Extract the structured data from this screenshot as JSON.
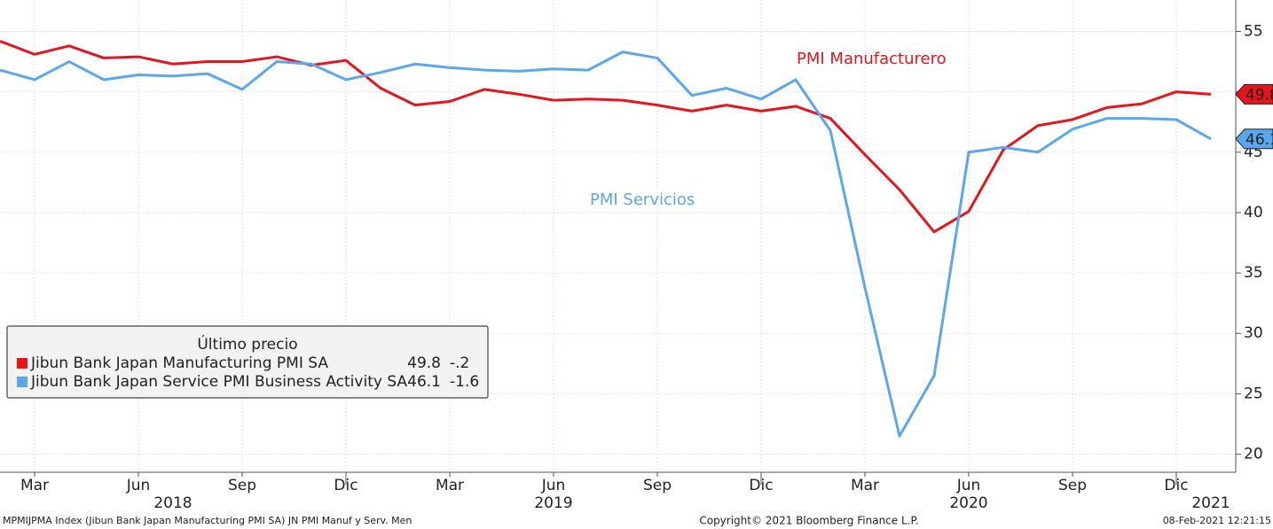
{
  "chart_data": {
    "type": "line",
    "categories": [
      null,
      "Mar",
      null,
      null,
      "Jun",
      null,
      null,
      "Sep",
      null,
      null,
      "Dic",
      null,
      null,
      "Mar",
      null,
      null,
      "Jun",
      null,
      null,
      "Sep",
      null,
      null,
      "Dic",
      null,
      null,
      "Mar",
      null,
      null,
      "Jun",
      null,
      null,
      "Sep",
      null,
      null,
      "Dic",
      null
    ],
    "category_years": [
      null,
      null,
      null,
      null,
      null,
      "2018",
      null,
      null,
      null,
      null,
      null,
      null,
      null,
      null,
      null,
      null,
      "2019",
      null,
      null,
      null,
      null,
      null,
      null,
      null,
      null,
      null,
      null,
      null,
      "2020",
      null,
      null,
      null,
      null,
      null,
      null,
      "2021"
    ],
    "series": [
      {
        "name": "Jibun Bank Japan Manufacturing PMI SA",
        "color": "#e8141b",
        "values": [
          54.2,
          53.1,
          53.8,
          52.8,
          52.9,
          52.3,
          52.5,
          52.5,
          52.9,
          52.2,
          52.6,
          50.3,
          48.9,
          49.2,
          50.2,
          49.8,
          49.3,
          49.4,
          49.3,
          48.9,
          48.4,
          48.9,
          48.4,
          48.8,
          47.8,
          44.8,
          41.9,
          38.4,
          40.1,
          45.2,
          47.2,
          47.7,
          48.7,
          49.0,
          50.0,
          49.8
        ],
        "change": {
          "value": -0.2,
          "label": "-.2"
        }
      },
      {
        "name": "Jibun Bank Japan Service PMI Business Activity SA",
        "color": "#5aa7ee",
        "values": [
          51.8,
          51.0,
          52.5,
          51.0,
          51.4,
          51.3,
          51.5,
          50.2,
          52.5,
          52.3,
          51.0,
          51.6,
          52.3,
          52.0,
          51.8,
          51.7,
          51.9,
          51.8,
          53.3,
          52.8,
          49.7,
          50.3,
          49.4,
          51.0,
          46.8,
          33.8,
          21.5,
          26.5,
          45.0,
          45.4,
          45.0,
          46.9,
          47.8,
          47.8,
          47.7,
          46.1
        ],
        "change": {
          "value": -1.6,
          "label": "-1.6"
        }
      }
    ],
    "annotations": [
      "PMI Manufacturero",
      "PMI Servicios"
    ],
    "legend_title": "Último precio",
    "ylim": [
      18.5,
      57.6
    ],
    "yticks": [
      20,
      25,
      30,
      35,
      40,
      45,
      50,
      55
    ],
    "grid": true,
    "footer": [
      "MPMIJPMA Index (Jibun Bank Japan Manufacturing PMI SA) JN PMI Manuf y Serv.  Men",
      "Copyright© 2021 Bloomberg Finance L.P.",
      "08-Feb-2021 12:21:15"
    ]
  }
}
